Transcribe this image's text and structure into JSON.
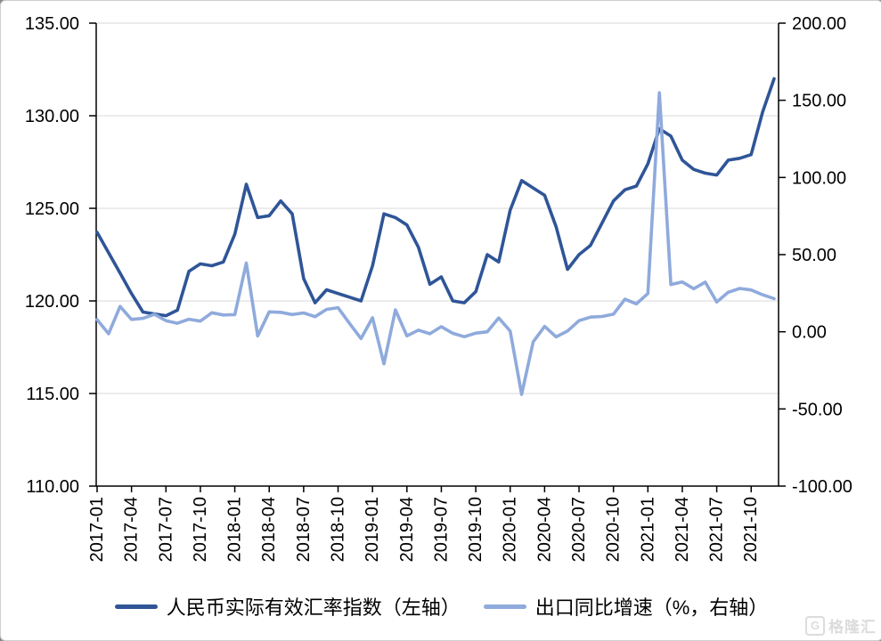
{
  "page": {
    "background": "#ffffff",
    "border_color": "#cfcfcf"
  },
  "legend": {
    "items": [
      {
        "label": "人民币实际有效汇率指数（左轴）",
        "color": "#2F5597"
      },
      {
        "label": "出口同比增速（%，右轴）",
        "color": "#8FAADC"
      }
    ]
  },
  "watermark": {
    "logo_letter": "G",
    "brand": "格隆汇"
  },
  "chart_data": {
    "type": "line",
    "title": "",
    "grid": {
      "show": true,
      "color": "#D9D9D9"
    },
    "axis_color": "#000000",
    "label_color": "#000000",
    "categories": [
      "2017-01",
      "2017-02",
      "2017-03",
      "2017-04",
      "2017-05",
      "2017-06",
      "2017-07",
      "2017-08",
      "2017-09",
      "2017-10",
      "2017-11",
      "2017-12",
      "2018-01",
      "2018-02",
      "2018-03",
      "2018-04",
      "2018-05",
      "2018-06",
      "2018-07",
      "2018-08",
      "2018-09",
      "2018-10",
      "2018-11",
      "2018-12",
      "2019-01",
      "2019-02",
      "2019-03",
      "2019-04",
      "2019-05",
      "2019-06",
      "2019-07",
      "2019-08",
      "2019-09",
      "2019-10",
      "2019-11",
      "2019-12",
      "2020-01",
      "2020-02",
      "2020-03",
      "2020-04",
      "2020-05",
      "2020-06",
      "2020-07",
      "2020-08",
      "2020-09",
      "2020-10",
      "2020-11",
      "2020-12",
      "2021-01",
      "2021-02",
      "2021-03",
      "2021-04",
      "2021-05",
      "2021-06",
      "2021-07",
      "2021-08",
      "2021-09",
      "2021-10",
      "2021-11",
      "2021-12"
    ],
    "series": [
      {
        "name": "人民币实际有效汇率指数（左轴）",
        "axis": "left",
        "color": "#2F5597",
        "stroke_width": 3.6,
        "values": [
          123.7,
          122.6,
          121.5,
          120.4,
          119.4,
          119.3,
          119.2,
          119.5,
          121.6,
          122.0,
          121.9,
          122.1,
          123.6,
          126.3,
          124.5,
          124.6,
          125.4,
          124.7,
          121.2,
          119.9,
          120.6,
          120.4,
          120.2,
          120.0,
          121.9,
          124.7,
          124.5,
          124.1,
          122.9,
          120.9,
          121.3,
          120.0,
          119.9,
          120.5,
          122.5,
          122.1,
          124.9,
          126.5,
          126.1,
          125.7,
          124.0,
          121.7,
          122.5,
          123.0,
          124.2,
          125.4,
          126.0,
          126.2,
          127.4,
          129.3,
          128.9,
          127.6,
          127.1,
          126.9,
          126.8,
          127.6,
          127.7,
          127.9,
          130.2,
          132.0
        ]
      },
      {
        "name": "出口同比增速（%，右轴）",
        "axis": "right",
        "color": "#8FAADC",
        "stroke_width": 3.6,
        "values": [
          7.9,
          -1.3,
          16.4,
          8.0,
          8.7,
          11.3,
          7.2,
          5.5,
          8.1,
          6.9,
          12.3,
          10.9,
          11.1,
          44.5,
          -2.7,
          12.9,
          12.6,
          11.2,
          12.2,
          9.8,
          14.5,
          15.6,
          5.4,
          -4.4,
          9.1,
          -20.8,
          14.2,
          -2.7,
          1.1,
          -1.3,
          3.3,
          -1.0,
          -3.2,
          -0.9,
          0.0,
          9.0,
          0.5,
          -40.6,
          -6.6,
          3.5,
          -3.3,
          0.5,
          7.2,
          9.5,
          9.9,
          11.4,
          21.1,
          18.1,
          24.8,
          154.9,
          30.6,
          32.3,
          27.9,
          32.2,
          19.3,
          25.6,
          28.1,
          27.1,
          24.0,
          21.5
        ]
      }
    ],
    "left_axis": {
      "min": 110,
      "max": 135,
      "tick_values": [
        110,
        115,
        120,
        125,
        130,
        135
      ],
      "tick_labels": [
        "110.00",
        "115.00",
        "120.00",
        "125.00",
        "130.00",
        "135.00"
      ]
    },
    "right_axis": {
      "min": -100,
      "max": 200,
      "tick_values": [
        -100,
        -50,
        0,
        50,
        100,
        150,
        200
      ],
      "tick_labels": [
        "-100.00",
        "-50.00",
        "0.00",
        "50.00",
        "100.00",
        "150.00",
        "200.00"
      ]
    },
    "x_axis": {
      "tick_every": 3,
      "tick_labels": [
        "2017-01",
        "2017-04",
        "2017-07",
        "2017-10",
        "2018-01",
        "2018-04",
        "2018-07",
        "2018-10",
        "2019-01",
        "2019-04",
        "2019-07",
        "2019-10",
        "2020-01",
        "2020-04",
        "2020-07",
        "2020-10",
        "2021-01",
        "2021-04",
        "2021-07",
        "2021-10"
      ]
    }
  }
}
